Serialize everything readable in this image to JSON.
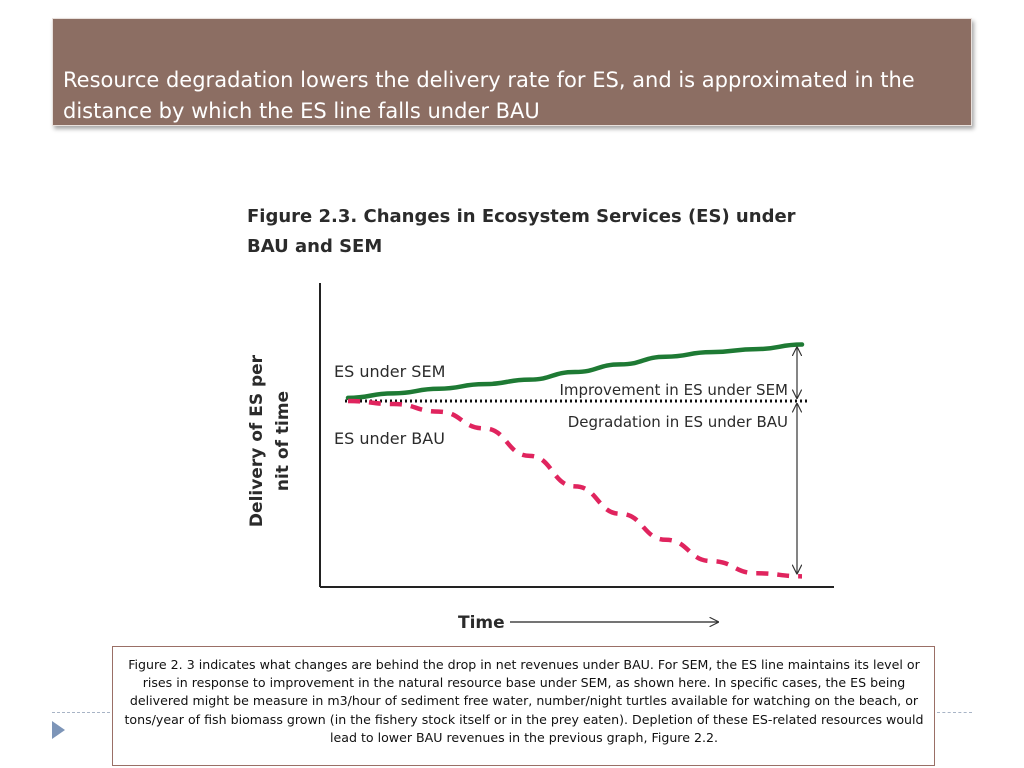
{
  "slide": {
    "title": "Resource degradation lowers the delivery rate for ES, and is approximated in the distance by which the ES line falls  under BAU",
    "caption": "Figure 2. 3 indicates what changes are behind the drop in net revenues under BAU.  For SEM, the ES line maintains its level or rises in response to improvement in the natural resource base under SEM, as shown here. In specific cases, the ES being delivered might be measure in m3/hour of sediment free water, number/night turtles available for watching on the beach, or tons/year of fish biomass grown (in the fishery stock itself or in the prey eaten). Depletion of these ES-related resources would lead to lower BAU revenues in the previous graph, Figure 2.2."
  },
  "chart_data": {
    "type": "line",
    "title": "Figure 2.3. Changes in Ecosystem Services (ES) under BAU and SEM",
    "xlabel": "Time",
    "ylabel": "Delivery of  ES per nit of time",
    "x": [
      0,
      0.1,
      0.2,
      0.3,
      0.4,
      0.5,
      0.6,
      0.7,
      0.8,
      0.9,
      1.0
    ],
    "xlim": [
      0,
      1
    ],
    "ylim": [
      0,
      1
    ],
    "baseline": 0.61,
    "grid": false,
    "legend": "none",
    "series": [
      {
        "name": "ES under SEM",
        "style": "solid",
        "color": "#1e7a34",
        "values": [
          0.62,
          0.635,
          0.65,
          0.665,
          0.68,
          0.705,
          0.73,
          0.755,
          0.77,
          0.78,
          0.795
        ]
      },
      {
        "name": "ES under BAU",
        "style": "dashed",
        "color": "#e0245e",
        "values": [
          0.61,
          0.6,
          0.575,
          0.52,
          0.43,
          0.33,
          0.24,
          0.155,
          0.085,
          0.045,
          0.035
        ]
      }
    ],
    "annotations": {
      "improvement": "Improvement in ES under SEM",
      "degradation": "Degradation in ES under BAU"
    }
  }
}
